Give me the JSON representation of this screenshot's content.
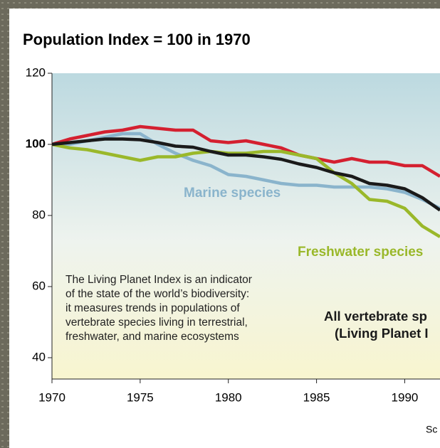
{
  "chart_data": {
    "type": "line",
    "title": "Population Index = 100 in 1970",
    "x": [
      1970,
      1971,
      1972,
      1973,
      1974,
      1975,
      1976,
      1977,
      1978,
      1979,
      1980,
      1981,
      1982,
      1983,
      1984,
      1985,
      1986,
      1987,
      1988,
      1989,
      1990,
      1991,
      1992
    ],
    "series": [
      {
        "color": "#d42030",
        "values": [
          100,
          101.5,
          102.5,
          103.5,
          104,
          105,
          104.5,
          104,
          104,
          101,
          100.5,
          101,
          100,
          99,
          97,
          96,
          95,
          96,
          95,
          95,
          94,
          94,
          91
        ]
      },
      {
        "name": "Marine species",
        "color": "#8ab4cc",
        "values": [
          100,
          100,
          101,
          102,
          103,
          103,
          100,
          97.5,
          95.5,
          94,
          91.5,
          91,
          90,
          89,
          88.5,
          88.5,
          88,
          88,
          88,
          87.5,
          86.5,
          84.5,
          82
        ]
      },
      {
        "name": "Freshwater species",
        "color": "#9ab82a",
        "values": [
          100,
          99,
          98.5,
          97.5,
          96.5,
          95.5,
          96.5,
          96.5,
          97.5,
          98,
          97.5,
          97.5,
          98,
          98,
          97,
          96,
          92,
          89,
          84.5,
          84,
          82,
          77,
          74
        ]
      },
      {
        "color": "#1a1a1a",
        "values": [
          100,
          100.5,
          101,
          101.5,
          101.5,
          101.3,
          100.5,
          99.5,
          99.2,
          98,
          97,
          97,
          96.5,
          95.8,
          94.5,
          93.5,
          92,
          91,
          89,
          88.5,
          87.5,
          85,
          81.5
        ]
      }
    ],
    "annotations": [
      "The Living Planet Index is an indicator",
      "of the state of the world’s biodiversity:",
      "it measures trends in populations of",
      "vertebrate species living in terrestrial,",
      "freshwater, and marine ecosystems"
    ],
    "series_label": [
      "All vertebrate sp",
      "(Living Planet I"
    ],
    "source": "Sc",
    "xlim": [
      1970,
      1992
    ],
    "xticks": [
      1970,
      1975,
      1980,
      1985,
      1990
    ],
    "ylim": [
      34,
      120
    ],
    "yticks": [
      40,
      60,
      80,
      100,
      120
    ]
  }
}
